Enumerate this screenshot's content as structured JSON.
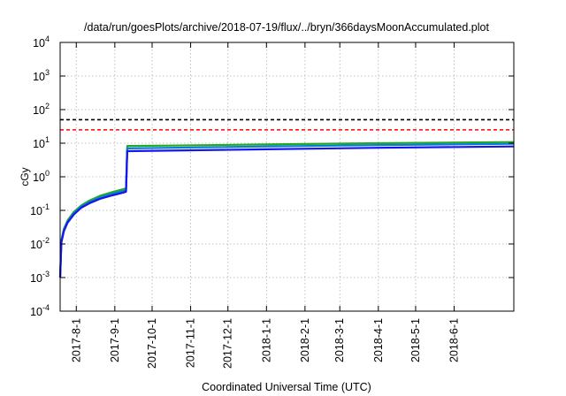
{
  "chart_data": {
    "type": "line",
    "title": "/data/run/goesPlots/archive/2018-07-19/flux/../bryn/366daysMoonAccumulated.plot",
    "xlabel": "Coordinated Universal Time (UTC)",
    "ylabel": "cGy",
    "yscale": "log",
    "ylim": [
      0.0001,
      10000
    ],
    "xlim": [
      "2017-07-19",
      "2018-07-19"
    ],
    "y_ticks": [
      {
        "value": 0.0001,
        "base": "10",
        "exp": "-4"
      },
      {
        "value": 0.001,
        "base": "10",
        "exp": "-3"
      },
      {
        "value": 0.01,
        "base": "10",
        "exp": "-2"
      },
      {
        "value": 0.1,
        "base": "10",
        "exp": "-1"
      },
      {
        "value": 1,
        "base": "10",
        "exp": "0"
      },
      {
        "value": 10,
        "base": "10",
        "exp": "1"
      },
      {
        "value": 100,
        "base": "10",
        "exp": "2"
      },
      {
        "value": 1000,
        "base": "10",
        "exp": "3"
      },
      {
        "value": 10000,
        "base": "10",
        "exp": "4"
      }
    ],
    "x_ticks": [
      "2017-8-1",
      "2017-9-1",
      "2017-10-1",
      "2017-11-1",
      "2017-12-1",
      "2018-1-1",
      "2018-2-1",
      "2018-3-1",
      "2018-4-1",
      "2018-5-1",
      "2018-6-1"
    ],
    "x_tick_dates": [
      "2017-08-01",
      "2017-09-01",
      "2017-10-01",
      "2017-11-01",
      "2017-12-01",
      "2018-01-01",
      "2018-02-01",
      "2018-03-01",
      "2018-04-01",
      "2018-05-01",
      "2018-06-01"
    ],
    "grid": true,
    "reference_lines": [
      {
        "y": 50,
        "color": "#000000",
        "style": "dashed"
      },
      {
        "y": 25,
        "color": "#ff0000",
        "style": "dashed"
      }
    ],
    "series": [
      {
        "color": "#22aa22",
        "points": [
          [
            "2017-07-19",
            0.001
          ],
          [
            "2017-07-20",
            0.013
          ],
          [
            "2017-07-22",
            0.028
          ],
          [
            "2017-07-25",
            0.05
          ],
          [
            "2017-07-30",
            0.09
          ],
          [
            "2017-08-05",
            0.14
          ],
          [
            "2017-08-12",
            0.2
          ],
          [
            "2017-08-20",
            0.27
          ],
          [
            "2017-08-30",
            0.35
          ],
          [
            "2017-09-08",
            0.43
          ],
          [
            "2017-09-10",
            0.45
          ],
          [
            "2017-09-11",
            8.3
          ],
          [
            "2017-10-15",
            8.5
          ],
          [
            "2018-01-01",
            9.2
          ],
          [
            "2018-04-01",
            10.0
          ],
          [
            "2018-07-19",
            10.8
          ]
        ]
      },
      {
        "color": "#0a7bd6",
        "points": [
          [
            "2017-07-19",
            0.001
          ],
          [
            "2017-07-20",
            0.012
          ],
          [
            "2017-07-22",
            0.026
          ],
          [
            "2017-07-25",
            0.046
          ],
          [
            "2017-07-30",
            0.082
          ],
          [
            "2017-08-05",
            0.13
          ],
          [
            "2017-08-12",
            0.18
          ],
          [
            "2017-08-20",
            0.24
          ],
          [
            "2017-08-30",
            0.31
          ],
          [
            "2017-09-08",
            0.38
          ],
          [
            "2017-09-10",
            0.4
          ],
          [
            "2017-09-11",
            7.0
          ],
          [
            "2017-10-15",
            7.3
          ],
          [
            "2018-01-01",
            8.0
          ],
          [
            "2018-04-01",
            8.8
          ],
          [
            "2018-07-19",
            9.6
          ]
        ]
      },
      {
        "color": "#1515ee",
        "points": [
          [
            "2017-07-19",
            0.001
          ],
          [
            "2017-07-20",
            0.011
          ],
          [
            "2017-07-22",
            0.024
          ],
          [
            "2017-07-25",
            0.043
          ],
          [
            "2017-07-30",
            0.075
          ],
          [
            "2017-08-05",
            0.12
          ],
          [
            "2017-08-12",
            0.165
          ],
          [
            "2017-08-20",
            0.22
          ],
          [
            "2017-08-30",
            0.28
          ],
          [
            "2017-09-08",
            0.34
          ],
          [
            "2017-09-10",
            0.36
          ],
          [
            "2017-09-11",
            5.8
          ],
          [
            "2017-10-15",
            6.0
          ],
          [
            "2018-01-01",
            6.6
          ],
          [
            "2018-04-01",
            7.3
          ],
          [
            "2018-07-19",
            8.0
          ]
        ]
      }
    ]
  }
}
